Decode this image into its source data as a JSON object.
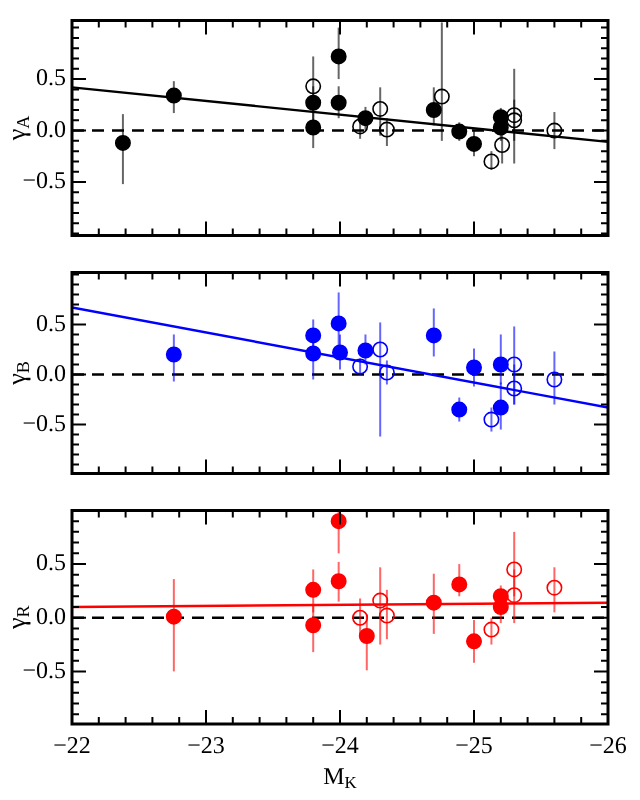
{
  "chart_data": [
    {
      "type": "scatter",
      "ylabel": "γ$_{A}$",
      "xlim": [
        -22,
        -26
      ],
      "ylim": [
        -1.02,
        1.07
      ],
      "tick_labels": "y",
      "marker": "circle",
      "grid": false,
      "xticks": [
        -22,
        {
          "value": -22.2,
          "label": null
        },
        {
          "value": -22.4,
          "label": null
        },
        {
          "value": -22.6,
          "label": null
        },
        {
          "value": -22.8,
          "label": null
        },
        -23,
        {
          "value": -23.2,
          "label": null
        },
        {
          "value": -23.4,
          "label": null
        },
        {
          "value": -23.6,
          "label": null
        },
        {
          "value": -23.8,
          "label": null
        },
        -24,
        {
          "value": -24.2,
          "label": null
        },
        {
          "value": -24.4,
          "label": null
        },
        {
          "value": -24.6,
          "label": null
        },
        {
          "value": -24.8,
          "label": null
        },
        -25,
        {
          "value": -25.2,
          "label": null
        },
        {
          "value": -25.4,
          "label": null
        },
        {
          "value": -25.6,
          "label": null
        },
        {
          "value": -25.8,
          "label": null
        },
        -26
      ],
      "yticks": [
        {
          "value": -1,
          "label": null
        },
        {
          "value": -0.9,
          "label": null
        },
        {
          "value": -0.8,
          "label": null
        },
        {
          "value": -0.7,
          "label": null
        },
        {
          "value": -0.6,
          "label": null
        },
        {
          "value": -0.5,
          "label": "−0.5"
        },
        {
          "value": -0.4,
          "label": null
        },
        {
          "value": -0.3,
          "label": null
        },
        {
          "value": -0.2,
          "label": null
        },
        {
          "value": -0.1,
          "label": null
        },
        {
          "value": 0,
          "label": "0.0"
        },
        {
          "value": 0.1,
          "label": null
        },
        {
          "value": 0.2,
          "label": null
        },
        {
          "value": 0.3,
          "label": null
        },
        {
          "value": 0.4,
          "label": null
        },
        {
          "value": 0.5,
          "label": "0.5"
        },
        {
          "value": 0.6,
          "label": null
        },
        {
          "value": 0.7,
          "label": null
        },
        {
          "value": 0.8,
          "label": null
        },
        {
          "value": 0.9,
          "label": null
        },
        {
          "value": 1,
          "label": null
        }
      ],
      "ref_lines": [
        {
          "axis": "y",
          "value": 0,
          "line_style": "dashed",
          "color": "#000000"
        }
      ],
      "series": [
        {
          "color": "#000000",
          "x": [
            -22.38,
            -22.76,
            -23.8,
            -23.8,
            -23.99,
            -23.99,
            -24.19,
            -24.7,
            -24.89,
            -25,
            -25.2,
            -25.2
          ],
          "values": [
            -0.12,
            0.34,
            0.27,
            0.03,
            0.72,
            0.27,
            0.12,
            0.2,
            -0.01,
            -0.13,
            0.13,
            0.03
          ],
          "errors": [
            [
              -0.52,
              0.16
            ],
            [
              0.17,
              0.48
            ],
            [
              0.1,
              0.43
            ],
            [
              -0.17,
              0.2
            ],
            [
              0.5,
              1.0
            ],
            [
              0.12,
              0.43
            ],
            [
              0,
              0.23
            ],
            [
              0.05,
              0.42
            ],
            [
              -0.1,
              0.08
            ],
            [
              -0.25,
              0
            ],
            [
              0,
              0.22
            ],
            [
              -0.1,
              0.17
            ]
          ]
        },
        {
          "color": "#000000",
          "x": [
            -23.8,
            -24.15,
            -24.3,
            -24.35,
            -24.76,
            -25.13,
            -25.21,
            -25.3,
            -25.3,
            -25.6
          ],
          "values": [
            0.43,
            0.04,
            0.21,
            0.01,
            0.33,
            -0.3,
            -0.14,
            0.15,
            0.1,
            0
          ],
          "errors": [
            [
              0.2,
              0.72
            ],
            [
              -0.08,
              0.15
            ],
            [
              -0.05,
              0.42
            ],
            [
              -0.15,
              0.12
            ],
            [
              -0.1,
              1.05
            ],
            [
              -0.38,
              -0.2
            ],
            [
              -0.32,
              0.2
            ],
            [
              -0.32,
              0.6
            ],
            [
              -0.1,
              0.3
            ],
            [
              -0.18,
              0.18
            ]
          ]
        },
        {
          "type": "line",
          "marker": "none",
          "color": "#000000",
          "x": [
            -22,
            -26
          ],
          "values": [
            0.42,
            -0.11
          ]
        }
      ]
    },
    {
      "type": "scatter",
      "ylabel": "γ$_{B}$",
      "xlim": [
        -22,
        -26
      ],
      "ylim": [
        -0.99,
        1.02
      ],
      "tick_labels": "y",
      "marker": "circle",
      "grid": false,
      "xticks": [
        -22,
        {
          "value": -22.2,
          "label": null
        },
        {
          "value": -22.4,
          "label": null
        },
        {
          "value": -22.6,
          "label": null
        },
        {
          "value": -22.8,
          "label": null
        },
        -23,
        {
          "value": -23.2,
          "label": null
        },
        {
          "value": -23.4,
          "label": null
        },
        {
          "value": -23.6,
          "label": null
        },
        {
          "value": -23.8,
          "label": null
        },
        -24,
        {
          "value": -24.2,
          "label": null
        },
        {
          "value": -24.4,
          "label": null
        },
        {
          "value": -24.6,
          "label": null
        },
        {
          "value": -24.8,
          "label": null
        },
        -25,
        {
          "value": -25.2,
          "label": null
        },
        {
          "value": -25.4,
          "label": null
        },
        {
          "value": -25.6,
          "label": null
        },
        {
          "value": -25.8,
          "label": null
        },
        -26
      ],
      "yticks": [
        {
          "value": -0.9,
          "label": null
        },
        {
          "value": -0.8,
          "label": null
        },
        {
          "value": -0.7,
          "label": null
        },
        {
          "value": -0.6,
          "label": null
        },
        {
          "value": -0.5,
          "label": "−0.5"
        },
        {
          "value": -0.4,
          "label": null
        },
        {
          "value": -0.3,
          "label": null
        },
        {
          "value": -0.2,
          "label": null
        },
        {
          "value": -0.1,
          "label": null
        },
        {
          "value": 0,
          "label": "0.0"
        },
        {
          "value": 0.1,
          "label": null
        },
        {
          "value": 0.2,
          "label": null
        },
        {
          "value": 0.3,
          "label": null
        },
        {
          "value": 0.4,
          "label": null
        },
        {
          "value": 0.5,
          "label": "0.5"
        },
        {
          "value": 0.6,
          "label": null
        },
        {
          "value": 0.7,
          "label": null
        },
        {
          "value": 0.8,
          "label": null
        },
        {
          "value": 0.9,
          "label": null
        },
        {
          "value": 1,
          "label": null
        }
      ],
      "ref_lines": [
        {
          "axis": "y",
          "value": 0,
          "line_style": "dashed",
          "color": "#000000"
        }
      ],
      "series": [
        {
          "color": "#0000ff",
          "x": [
            -22.76,
            -23.8,
            -23.8,
            -23.99,
            -24,
            -24.19,
            -24.7,
            -24.89,
            -25,
            -25.2,
            -25.2
          ],
          "values": [
            0.2,
            0.39,
            0.21,
            0.51,
            0.22,
            0.24,
            0.39,
            -0.35,
            0.07,
            0.1,
            -0.33
          ],
          "errors": [
            [
              -0.07,
              0.4
            ],
            [
              0.22,
              0.55
            ],
            [
              -0.05,
              0.4
            ],
            [
              0.2,
              0.82
            ],
            [
              0.05,
              0.4
            ],
            [
              0.1,
              0.4
            ],
            [
              0.18,
              0.66
            ],
            [
              -0.47,
              -0.23
            ],
            [
              -0.12,
              0.26
            ],
            [
              -0.1,
              0.4
            ],
            [
              -0.55,
              -0.08
            ]
          ]
        },
        {
          "color": "#0000ff",
          "x": [
            -24.15,
            -24.3,
            -24.35,
            -25.13,
            -25.3,
            -25.3,
            -25.6
          ],
          "values": [
            0.08,
            0.25,
            0.02,
            -0.45,
            0.1,
            -0.14,
            -0.05
          ],
          "errors": [
            [
              0,
              0.16
            ],
            [
              -0.62,
              0.52
            ],
            [
              -0.1,
              0.14
            ],
            [
              -0.57,
              -0.33
            ],
            [
              -0.3,
              0.48
            ],
            [
              -0.3,
              0.1
            ],
            [
              -0.3,
              0.23
            ]
          ]
        },
        {
          "type": "line",
          "marker": "none",
          "color": "#0000ff",
          "x": [
            -22,
            -26
          ],
          "values": [
            0.67,
            -0.33
          ]
        }
      ]
    },
    {
      "type": "scatter",
      "ylabel": "γ$_{R}$",
      "xlabel": "M$_{K}$",
      "xlim": [
        -22,
        -26
      ],
      "ylim": [
        -0.99,
        1.0
      ],
      "marker": "circle",
      "grid": false,
      "xticks": [
        {
          "value": -22,
          "label": "−22"
        },
        {
          "value": -22.2,
          "label": null
        },
        {
          "value": -22.4,
          "label": null
        },
        {
          "value": -22.6,
          "label": null
        },
        {
          "value": -22.8,
          "label": null
        },
        {
          "value": -23,
          "label": "−23"
        },
        {
          "value": -23.2,
          "label": null
        },
        {
          "value": -23.4,
          "label": null
        },
        {
          "value": -23.6,
          "label": null
        },
        {
          "value": -23.8,
          "label": null
        },
        {
          "value": -24,
          "label": "−24"
        },
        {
          "value": -24.2,
          "label": null
        },
        {
          "value": -24.4,
          "label": null
        },
        {
          "value": -24.6,
          "label": null
        },
        {
          "value": -24.8,
          "label": null
        },
        {
          "value": -25,
          "label": "−25"
        },
        {
          "value": -25.2,
          "label": null
        },
        {
          "value": -25.4,
          "label": null
        },
        {
          "value": -25.6,
          "label": null
        },
        {
          "value": -25.8,
          "label": null
        },
        {
          "value": -26,
          "label": "−26"
        }
      ],
      "yticks": [
        {
          "value": -0.9,
          "label": null
        },
        {
          "value": -0.8,
          "label": null
        },
        {
          "value": -0.7,
          "label": null
        },
        {
          "value": -0.6,
          "label": null
        },
        {
          "value": -0.5,
          "label": "−0.5"
        },
        {
          "value": -0.4,
          "label": null
        },
        {
          "value": -0.3,
          "label": null
        },
        {
          "value": -0.2,
          "label": null
        },
        {
          "value": -0.1,
          "label": null
        },
        {
          "value": 0,
          "label": "0.0"
        },
        {
          "value": 0.1,
          "label": null
        },
        {
          "value": 0.2,
          "label": null
        },
        {
          "value": 0.3,
          "label": null
        },
        {
          "value": 0.4,
          "label": null
        },
        {
          "value": 0.5,
          "label": "0.5"
        },
        {
          "value": 0.6,
          "label": null
        },
        {
          "value": 0.7,
          "label": null
        },
        {
          "value": 0.8,
          "label": null
        },
        {
          "value": 0.9,
          "label": null
        }
      ],
      "ref_lines": [
        {
          "axis": "y",
          "value": 0,
          "line_style": "dashed",
          "color": "#000000"
        }
      ],
      "series": [
        {
          "color": "#ff0000",
          "x": [
            -22.76,
            -23.8,
            -23.8,
            -23.99,
            -23.99,
            -24.2,
            -24.7,
            -24.89,
            -25,
            -25.2,
            -25.2
          ],
          "values": [
            0.01,
            0.26,
            -0.07,
            0.9,
            0.34,
            -0.17,
            0.14,
            0.31,
            -0.22,
            0.2,
            0.1
          ],
          "errors": [
            [
              -0.5,
              0.36
            ],
            [
              0.05,
              0.45
            ],
            [
              -0.32,
              0.12
            ],
            [
              0.6,
              1.0
            ],
            [
              0.15,
              0.52
            ],
            [
              -0.49,
              0.03
            ],
            [
              -0.15,
              0.41
            ],
            [
              0.2,
              0.5
            ],
            [
              -0.42,
              -0.02
            ],
            [
              0.1,
              0.3
            ],
            [
              -0.05,
              0.2
            ]
          ]
        },
        {
          "color": "#ff0000",
          "x": [
            -24.15,
            -24.3,
            -24.35,
            -25.13,
            -25.3,
            -25.3,
            -25.6
          ],
          "values": [
            0,
            0.16,
            0.02,
            -0.11,
            0.45,
            0.21,
            0.28
          ],
          "errors": [
            [
              -0.18,
              0.18
            ],
            [
              -0.25,
              0.47
            ],
            [
              -0.2,
              0.26
            ],
            [
              -0.25,
              0
            ],
            [
              0.2,
              0.8
            ],
            [
              -0.05,
              0.45
            ],
            [
              0.05,
              0.47
            ]
          ]
        },
        {
          "type": "line",
          "marker": "none",
          "color": "#ff0000",
          "x": [
            -22,
            -26
          ],
          "values": [
            0.1,
            0.14
          ]
        }
      ]
    }
  ]
}
